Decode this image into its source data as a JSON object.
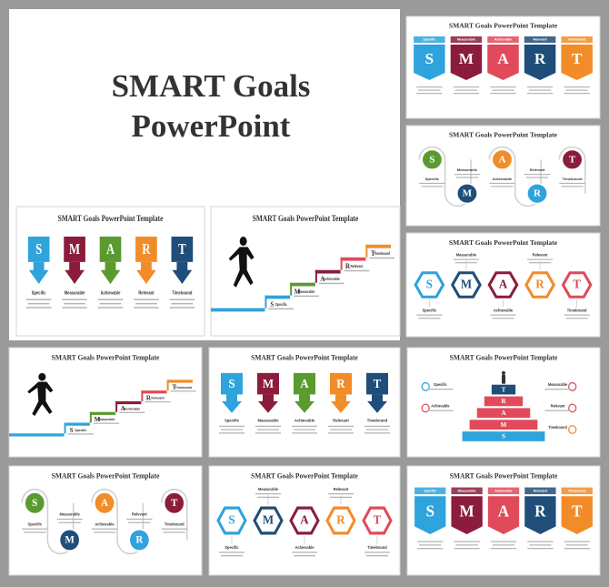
{
  "hero": {
    "title_line1": "SMART Goals",
    "title_line2": "PowerPoint"
  },
  "slide_title": "SMART Goals PowerPoint Template",
  "letters": [
    "S",
    "M",
    "A",
    "R",
    "T"
  ],
  "labels": [
    "Specific",
    "Measurable",
    "Achievable",
    "Relevant",
    "Timebound"
  ]
}
